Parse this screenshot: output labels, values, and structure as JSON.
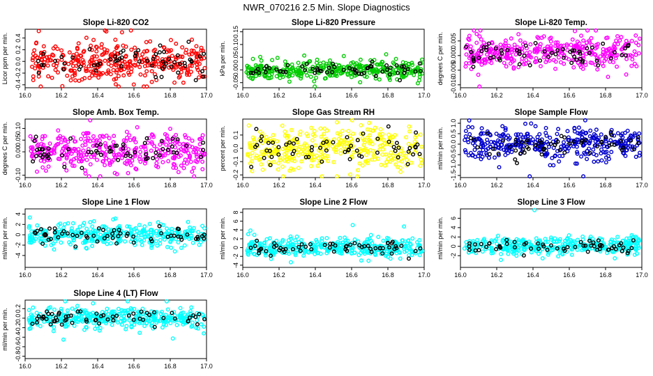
{
  "figure_title": "NWR_070216  2.5 Min. Slope Diagnostics",
  "chart_data": [
    {
      "type": "scatter",
      "title": "Slope Li-820 CO2",
      "ylabel": "Licor ppm per min.",
      "color": "#ff0000",
      "xlim": [
        16.0,
        17.0
      ],
      "xticks": [
        16.0,
        16.2,
        16.4,
        16.6,
        16.8,
        17.0
      ],
      "ylim": [
        -0.45,
        0.55
      ],
      "yticks": [
        -0.4,
        -0.2,
        0.0,
        0.2,
        0.4
      ],
      "ytick_labels": [
        "-0.4",
        "-0.2",
        "0.0",
        "0.2",
        "0.4"
      ],
      "center": 0.0,
      "spread": 0.17,
      "n_colored": 360,
      "n_black": 60,
      "seed": 11
    },
    {
      "type": "scatter",
      "title": "Slope Li-820 Pressure",
      "ylabel": "kPa per min.",
      "color": "#00cc00",
      "xlim": [
        16.0,
        17.0
      ],
      "xticks": [
        16.0,
        16.2,
        16.4,
        16.6,
        16.8,
        17.0
      ],
      "ylim": [
        -0.07,
        0.16
      ],
      "yticks": [
        -0.05,
        0.0,
        0.05,
        0.1,
        0.15
      ],
      "ytick_labels": [
        "-0.05",
        "0.00",
        "0.05",
        "0.10",
        "0.15"
      ],
      "center": 0.0,
      "spread": 0.018,
      "n_colored": 360,
      "n_black": 60,
      "seed": 23
    },
    {
      "type": "scatter",
      "title": "Slope Li-820 Temp.",
      "ylabel": "degrees C per min.",
      "color": "#ff00ff",
      "xlim": [
        16.0,
        17.0
      ],
      "xticks": [
        16.0,
        16.2,
        16.4,
        16.6,
        16.8,
        17.0
      ],
      "ylim": [
        -0.011,
        0.009
      ],
      "yticks": [
        -0.01,
        -0.005,
        0.0,
        0.005
      ],
      "ytick_labels": [
        "-0.010",
        "-0.005",
        "0.000",
        "0.005"
      ],
      "center": 0.001,
      "spread": 0.0028,
      "n_colored": 360,
      "n_black": 60,
      "seed": 37
    },
    {
      "type": "scatter",
      "title": "Slope Amb. Box Temp.",
      "ylabel": "degrees C per min.",
      "color": "#ff00ff",
      "xlim": [
        16.0,
        17.0
      ],
      "xticks": [
        16.0,
        16.2,
        16.4,
        16.6,
        16.8,
        17.0
      ],
      "ylim": [
        -0.11,
        0.14
      ],
      "yticks": [
        -0.1,
        0.0,
        0.05,
        0.1
      ],
      "ytick_labels": [
        "-0.10",
        "0.00",
        "0.05",
        "0.10"
      ],
      "center": 0.0,
      "spread": 0.04,
      "n_colored": 360,
      "n_black": 60,
      "seed": 41
    },
    {
      "type": "scatter",
      "title": "Slope Gas Stream RH",
      "ylabel": "percent per min.",
      "color": "#ffff00",
      "xlim": [
        16.0,
        17.0
      ],
      "xticks": [
        16.0,
        16.2,
        16.4,
        16.6,
        16.8,
        17.0
      ],
      "ylim": [
        -0.22,
        0.22
      ],
      "yticks": [
        -0.2,
        -0.1,
        0.0,
        0.1
      ],
      "ytick_labels": [
        "-0.2",
        "-0.1",
        "0.0",
        "0.1"
      ],
      "center": 0.0,
      "spread": 0.08,
      "n_colored": 360,
      "n_black": 60,
      "seed": 53
    },
    {
      "type": "scatter",
      "title": "Slope Sample Flow",
      "ylabel": "ml/min per min.",
      "color": "#0000cc",
      "xlim": [
        16.0,
        17.0
      ],
      "xticks": [
        16.0,
        16.2,
        16.4,
        16.6,
        16.8,
        17.0
      ],
      "ylim": [
        -1.6,
        1.2
      ],
      "yticks": [
        -1.5,
        -1.0,
        -0.5,
        0.0,
        0.5,
        1.0
      ],
      "ytick_labels": [
        "-1.5",
        "-1.0",
        "-0.5",
        "0.0",
        "0.5",
        "1.0"
      ],
      "center": 0.0,
      "spread": 0.38,
      "n_colored": 360,
      "n_black": 60,
      "seed": 61
    },
    {
      "type": "scatter",
      "title": "Slope Line 1 Flow",
      "ylabel": "ml/min per min.",
      "color": "#00ffff",
      "xlim": [
        16.0,
        17.0
      ],
      "xticks": [
        16.0,
        16.2,
        16.4,
        16.6,
        16.8,
        17.0
      ],
      "ylim": [
        -6.3,
        5.0
      ],
      "yticks": [
        -4,
        -2,
        0,
        2,
        4
      ],
      "ytick_labels": [
        "-4",
        "-2",
        "0",
        "2",
        "4"
      ],
      "center": 0.0,
      "spread": 1.0,
      "n_colored": 360,
      "n_black": 60,
      "seed": 73
    },
    {
      "type": "scatter",
      "title": "Slope Line 2 Flow",
      "ylabel": "ml/min per min.",
      "color": "#00ffff",
      "xlim": [
        16.0,
        17.0
      ],
      "xticks": [
        16.0,
        16.2,
        16.4,
        16.6,
        16.8,
        17.0
      ],
      "ylim": [
        -4.5,
        8.8
      ],
      "yticks": [
        -4,
        -2,
        0,
        2,
        4,
        6,
        8
      ],
      "ytick_labels": [
        "-4",
        "-2",
        "0",
        "2",
        "4",
        "6",
        "8"
      ],
      "center": 0.0,
      "spread": 1.0,
      "n_colored": 360,
      "n_black": 60,
      "seed": 83
    },
    {
      "type": "scatter",
      "title": "Slope Line 3 Flow",
      "ylabel": "ml/min per min.",
      "color": "#00ffff",
      "xlim": [
        16.0,
        17.0
      ],
      "xticks": [
        16.0,
        16.2,
        16.4,
        16.6,
        16.8,
        17.0
      ],
      "ylim": [
        -4.5,
        8.0
      ],
      "yticks": [
        -2,
        0,
        2,
        4,
        6
      ],
      "ytick_labels": [
        "-2",
        "0",
        "2",
        "4",
        "6"
      ],
      "center": 0.0,
      "spread": 1.0,
      "n_colored": 360,
      "n_black": 60,
      "seed": 97
    },
    {
      "type": "scatter",
      "title": "Slope Line 4 (LT) Flow",
      "ylabel": "ml/min per min.",
      "color": "#00ffff",
      "xlim": [
        16.0,
        17.0
      ],
      "xticks": [
        16.0,
        16.2,
        16.4,
        16.6,
        16.8,
        17.0
      ],
      "ylim": [
        -0.85,
        0.38
      ],
      "yticks": [
        -0.8,
        -0.6,
        -0.4,
        -0.2,
        0.0,
        0.2
      ],
      "ytick_labels": [
        "-0.8",
        "-0.6",
        "-0.4",
        "-0.2",
        "0.0",
        "0.2"
      ],
      "center": 0.0,
      "spread": 0.1,
      "n_colored": 360,
      "n_black": 60,
      "seed": 101
    }
  ]
}
